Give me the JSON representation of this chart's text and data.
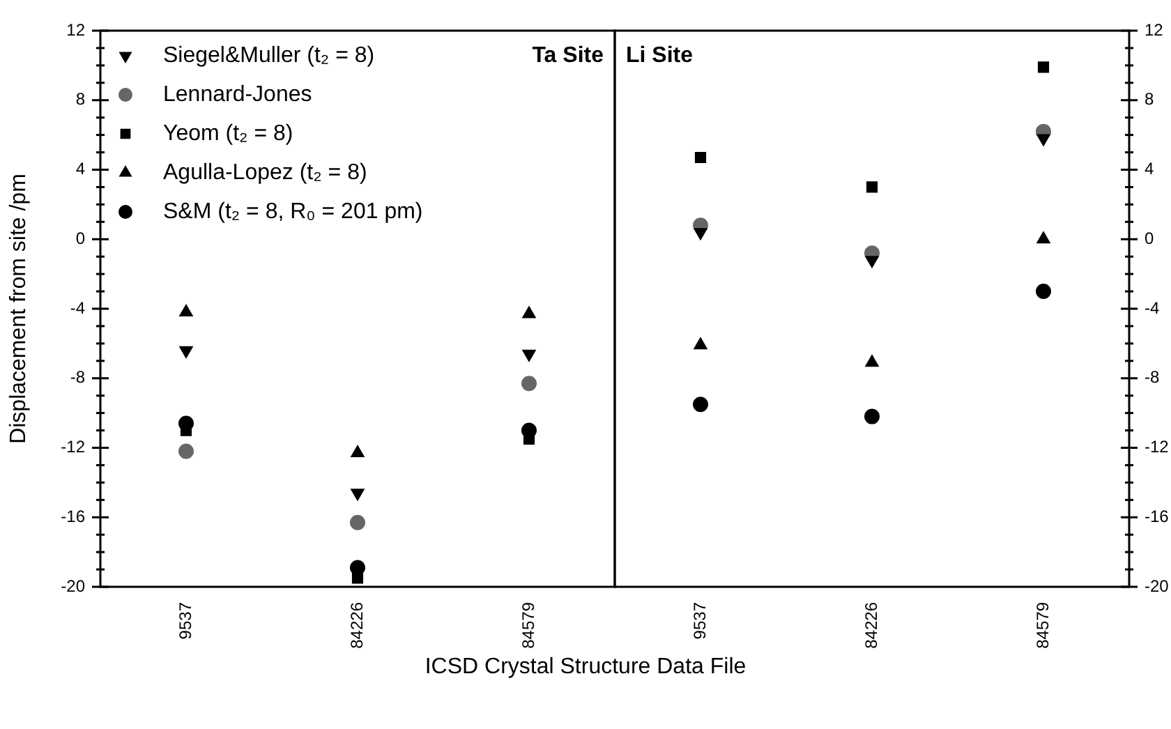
{
  "chart_data": [
    {
      "type": "scatter",
      "title": "Ta Site",
      "ylabel": "Displacement from site /pm",
      "xlabel": "ICSD Crystal Structure Data File",
      "categories": [
        "9537",
        "84226",
        "84579"
      ],
      "ylim": [
        -20,
        12
      ],
      "yticks": [
        -20,
        -16,
        -12,
        -8,
        -4,
        0,
        4,
        8,
        12
      ],
      "legend": "top left",
      "series": [
        {
          "name": "Siegel&Muller (t₂ = 8)",
          "color": "#000000",
          "marker": "triangle-down",
          "values": [
            -6.4,
            -14.6,
            -6.6
          ]
        },
        {
          "name": "Lennard-Jones",
          "color": "#666666",
          "marker": "circle",
          "values": [
            -12.2,
            -16.3,
            -8.3
          ]
        },
        {
          "name": "Yeom (t₂ = 8)",
          "color": "#000000",
          "marker": "square",
          "values": [
            -11.0,
            -19.5,
            -11.5
          ]
        },
        {
          "name": "Agulla-Lopez (t₂ = 8)",
          "color": "#000000",
          "marker": "triangle",
          "values": [
            -4.2,
            -12.3,
            -4.3
          ]
        },
        {
          "name": "S&M (t₂ = 8, R₀ = 201 pm)",
          "color": "#000000",
          "marker": "circle",
          "values": [
            -10.6,
            -18.9,
            -11.0
          ]
        }
      ]
    },
    {
      "type": "scatter",
      "title": "Li Site",
      "categories": [
        "9537",
        "84226",
        "84579"
      ],
      "y2lim": [
        -20,
        12
      ],
      "y2ticks": [
        -20,
        -16,
        -12,
        -8,
        -4,
        0,
        4,
        8,
        12
      ],
      "series": [
        {
          "color": "#000000",
          "marker": "triangle-down",
          "axis": "y2",
          "values": [
            0.4,
            -1.2,
            5.8
          ]
        },
        {
          "color": "#666666",
          "marker": "circle",
          "axis": "y2",
          "values": [
            0.8,
            -0.8,
            6.2
          ]
        },
        {
          "color": "#000000",
          "marker": "square",
          "axis": "y2",
          "values": [
            4.7,
            3.0,
            9.9
          ]
        },
        {
          "color": "#000000",
          "marker": "triangle",
          "axis": "y2",
          "values": [
            -6.1,
            -7.1,
            0.0
          ]
        },
        {
          "color": "#000000",
          "marker": "circle",
          "axis": "y2",
          "values": [
            -9.5,
            -10.2,
            -3.0
          ]
        }
      ]
    }
  ]
}
